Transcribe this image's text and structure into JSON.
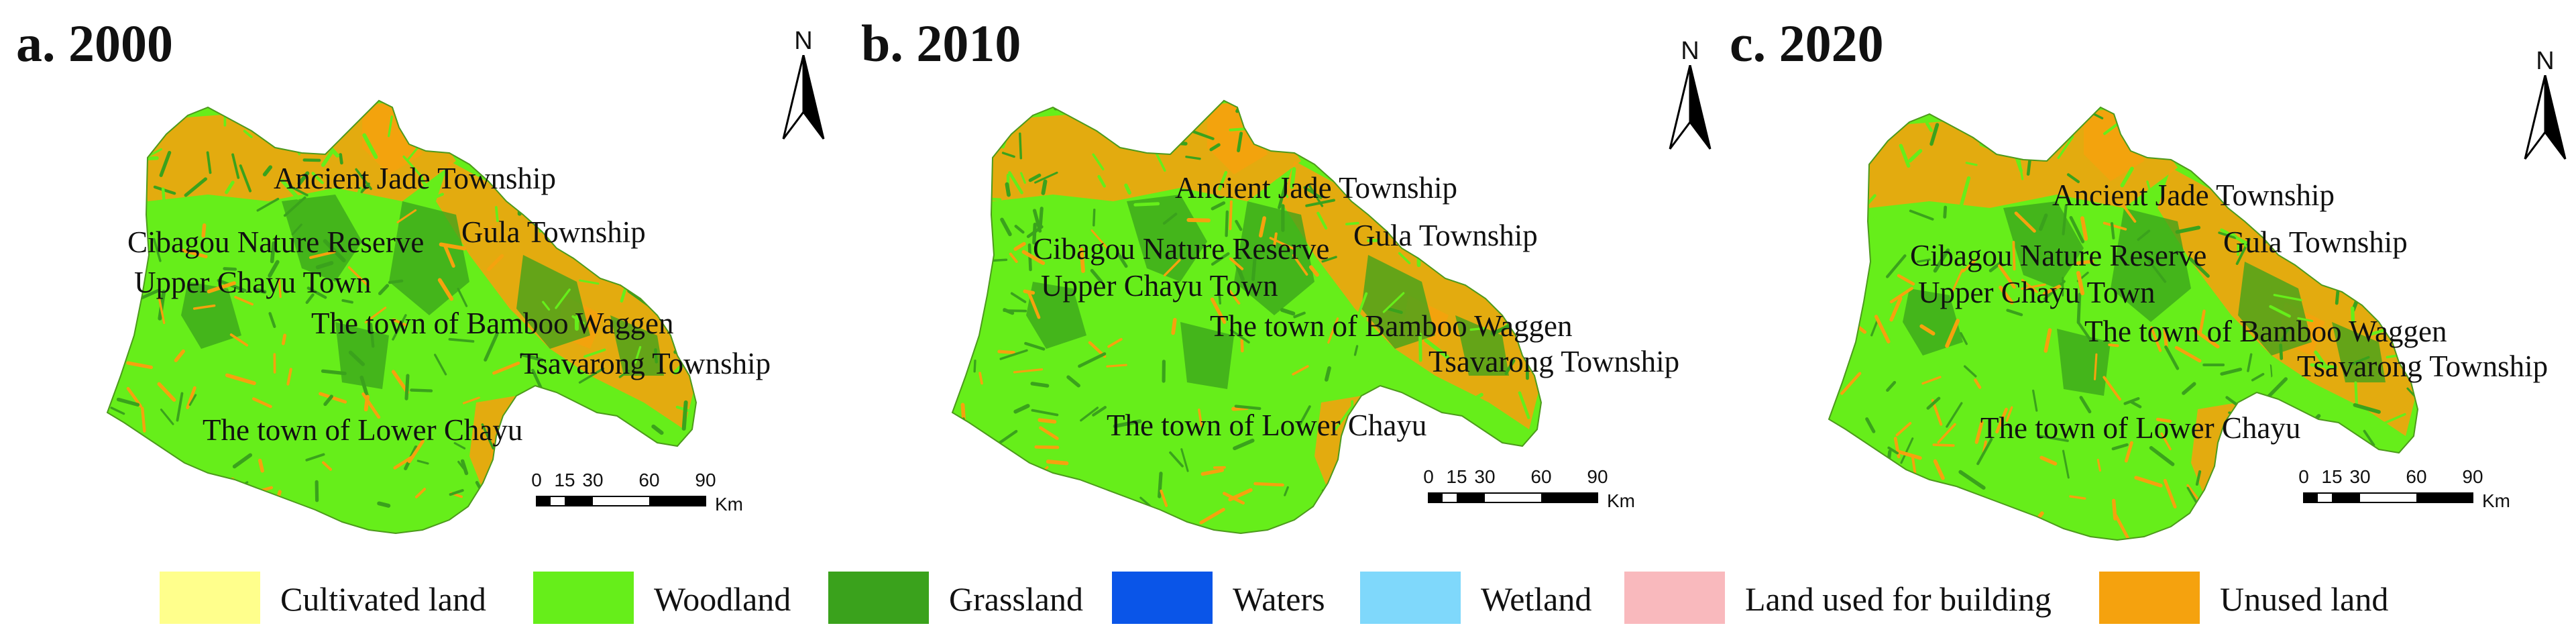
{
  "colors": {
    "woodland": "#66ee1a",
    "grassland": "#3aa21c",
    "unused": "#f5a20e",
    "cultivated": "#ffff8c",
    "waters": "#0a55e8",
    "wetland": "#7fd8fb",
    "building": "#f9b9bd"
  },
  "panels": [
    {
      "title": "a. 2000",
      "north": "N"
    },
    {
      "title": "b. 2010",
      "north": "N"
    },
    {
      "title": "c. 2020",
      "north": "N"
    }
  ],
  "places": {
    "ancient_jade": "Ancient Jade Township",
    "cibagou": "Cibagou Nature Reserve",
    "gula": "Gula Township",
    "upper_chayu": "Upper Chayu Town",
    "bamboo_waggen": "The town of Bamboo Waggen",
    "tsavarong": "Tsavarong Township",
    "lower_chayu": "The town of Lower Chayu"
  },
  "scale": {
    "ticks": [
      "0",
      "15",
      "30",
      "60",
      "90"
    ],
    "unit": "Km"
  },
  "legend": [
    {
      "label": "Cultivated land",
      "color": "#ffff8c"
    },
    {
      "label": "Woodland",
      "color": "#66ee1a"
    },
    {
      "label": "Grassland",
      "color": "#3aa21c"
    },
    {
      "label": "Waters",
      "color": "#0a55e8"
    },
    {
      "label": "Wetland",
      "color": "#7fd8fb"
    },
    {
      "label": "Land used for building",
      "color": "#f9b9bd"
    },
    {
      "label": "Unused land",
      "color": "#f5a20e"
    }
  ]
}
